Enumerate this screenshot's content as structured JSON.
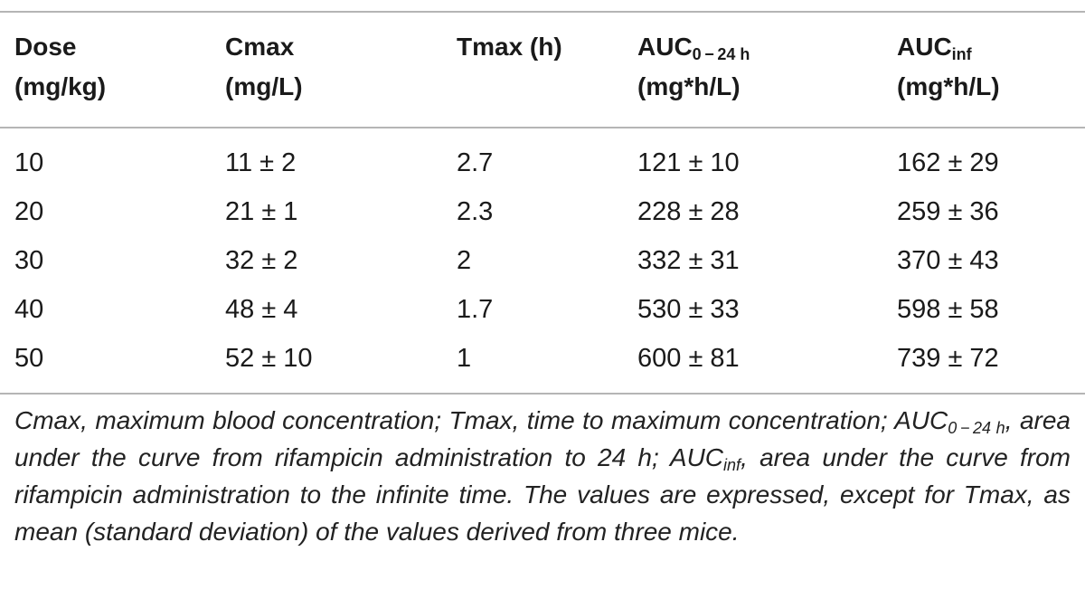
{
  "table": {
    "headers": [
      {
        "line1": "Dose",
        "line2": "(mg/kg)"
      },
      {
        "line1": "Cmax",
        "line2": "(mg/L)"
      },
      {
        "line1": "Tmax (h)",
        "line2": ""
      },
      {
        "line1_main": "AUC",
        "line1_sub": "0 − 24 h",
        "line2": "(mg*h/L)"
      },
      {
        "line1_main": "AUC",
        "line1_sub": "inf",
        "line2": "(mg*h/L)"
      }
    ],
    "rows": [
      [
        "10",
        "11 ± 2",
        "2.7",
        "121 ± 10",
        "162 ± 29"
      ],
      [
        "20",
        "21 ± 1",
        "2.3",
        "228 ± 28",
        "259 ± 36"
      ],
      [
        "30",
        "32 ± 2",
        "2",
        "332 ± 31",
        "370 ± 43"
      ],
      [
        "40",
        "48 ± 4",
        "1.7",
        "530 ± 33",
        "598 ± 58"
      ],
      [
        "50",
        "52 ± 10",
        "1",
        "600 ± 81",
        "739 ± 72"
      ]
    ]
  },
  "footnote": {
    "part1": "Cmax, maximum blood concentration; Tmax, time to maximum concentration; AUC",
    "sub1": "0 − 24 h",
    "part2": ", area under the curve from rifampicin administration to 24 h; AUC",
    "sub2": "inf",
    "part3": ", area under the curve from rifampicin administration to the infinite time. The values are expressed, except for Tmax, as mean (standard deviation) of the values derived from three mice."
  },
  "colors": {
    "rule": "#b5b5b5",
    "text": "#1a1a1a"
  }
}
